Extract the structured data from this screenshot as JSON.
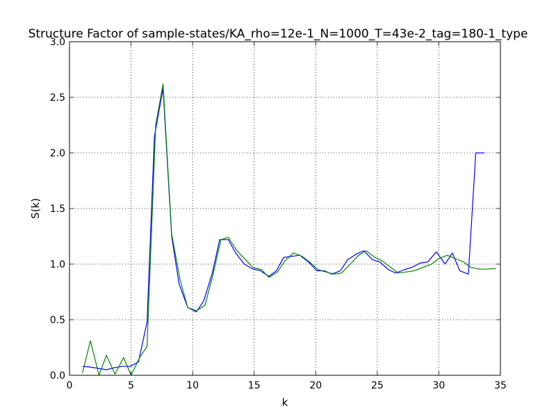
{
  "chart_data": {
    "type": "line",
    "title": "Structure Factor of sample-states/KA_rho=12e-1_N=1000_T=43e-2_tag=180-1_type",
    "xlabel": "k",
    "ylabel": "S(k)",
    "xlim": [
      0,
      35
    ],
    "ylim": [
      0,
      3
    ],
    "grid": true,
    "x_ticks": [
      0,
      5,
      10,
      15,
      20,
      25,
      30,
      35
    ],
    "y_ticks": [
      0.0,
      0.5,
      1.0,
      1.5,
      2.0,
      2.5,
      3.0
    ],
    "x_tick_labels": [
      "0",
      "5",
      "10",
      "15",
      "20",
      "25",
      "30",
      "35"
    ],
    "y_tick_labels": [
      "0.0",
      "0.5",
      "1.0",
      "1.5",
      "2.0",
      "2.5",
      "3.0"
    ],
    "series": [
      {
        "color": "#0000ff",
        "x": [
          1.05,
          1.6,
          2.2,
          3.0,
          3.7,
          4.3,
          4.9,
          5.6,
          6.3,
          6.9,
          7.6,
          8.3,
          8.9,
          9.6,
          10.3,
          10.9,
          11.6,
          12.2,
          12.9,
          13.5,
          14.2,
          14.8,
          15.5,
          16.2,
          16.8,
          17.4,
          18.1,
          18.7,
          19.4,
          20.1,
          20.7,
          21.3,
          22.0,
          22.6,
          23.3,
          23.9,
          24.6,
          25.2,
          25.9,
          26.5,
          27.2,
          27.8,
          28.5,
          29.1,
          29.8,
          30.5,
          31.1,
          31.7,
          32.4,
          33.0,
          33.7
        ],
        "y": [
          0.08,
          0.075,
          0.065,
          0.05,
          0.07,
          0.08,
          0.08,
          0.12,
          0.48,
          2.15,
          2.58,
          1.25,
          0.82,
          0.61,
          0.57,
          0.67,
          0.92,
          1.22,
          1.22,
          1.1,
          1.0,
          0.96,
          0.94,
          0.89,
          0.94,
          1.06,
          1.07,
          1.08,
          1.02,
          0.94,
          0.94,
          0.91,
          0.94,
          1.04,
          1.09,
          1.12,
          1.04,
          1.02,
          0.95,
          0.92,
          0.95,
          0.97,
          1.01,
          1.02,
          1.11,
          1.0,
          1.1,
          0.94,
          0.91,
          2.0,
          2.0
        ]
      },
      {
        "color": "#008000",
        "x": [
          1.05,
          1.7,
          2.4,
          3.0,
          3.7,
          4.4,
          5.0,
          5.7,
          6.3,
          7.0,
          7.6,
          8.3,
          9.0,
          9.6,
          10.3,
          11.0,
          11.6,
          12.3,
          12.9,
          13.6,
          14.3,
          14.9,
          15.6,
          16.2,
          16.9,
          17.5,
          18.2,
          18.9,
          19.5,
          20.2,
          20.8,
          21.5,
          22.1,
          22.8,
          23.5,
          24.1,
          24.8,
          25.4,
          26.1,
          26.7,
          27.4,
          28.0,
          28.7,
          29.4,
          30.0,
          30.7,
          31.3,
          32.0,
          32.6,
          33.3,
          33.9,
          34.6
        ],
        "y": [
          0.02,
          0.31,
          0.0,
          0.18,
          0.01,
          0.16,
          0.0,
          0.16,
          0.26,
          2.25,
          2.62,
          1.27,
          0.85,
          0.61,
          0.58,
          0.63,
          0.88,
          1.22,
          1.24,
          1.12,
          1.04,
          0.97,
          0.95,
          0.88,
          0.93,
          1.03,
          1.1,
          1.07,
          1.02,
          0.95,
          0.93,
          0.91,
          0.92,
          1.0,
          1.08,
          1.12,
          1.06,
          1.03,
          0.97,
          0.92,
          0.93,
          0.94,
          0.97,
          1.0,
          1.05,
          1.08,
          1.05,
          1.02,
          0.97,
          0.955,
          0.955,
          0.96
        ]
      }
    ]
  }
}
